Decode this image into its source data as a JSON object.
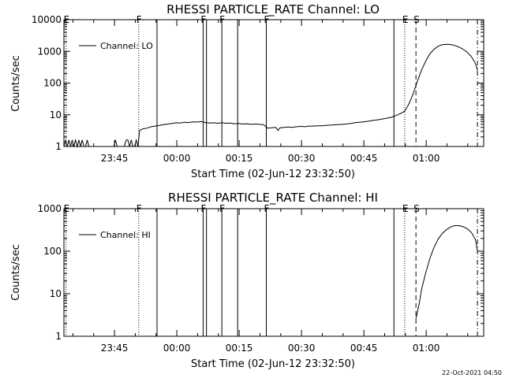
{
  "footer": {
    "timestamp": "22-Oct-2021 04:50"
  },
  "chart_data": [
    {
      "type": "line",
      "title": "RHESSI PARTICLE_RATE Channel: LO",
      "xlabel": "Start Time (02-Jun-12 23:32:50)",
      "ylabel": "Counts/sec",
      "xticks": [
        "23:45",
        "00:00",
        "00:15",
        "00:30",
        "00:45",
        "01:00"
      ],
      "x_minutes_range": [
        0,
        101
      ],
      "yscale": "log",
      "ylim": [
        1,
        10000
      ],
      "yticks": [
        "1",
        "10",
        "100",
        "1000",
        "10000"
      ],
      "legend": {
        "label": "Channel: LO",
        "placement": "top-left"
      },
      "markers": [
        {
          "label": "E",
          "minute": 0.5,
          "style": "dotted"
        },
        {
          "label": "F",
          "minute": 18.0,
          "style": "dotted"
        },
        {
          "label": "",
          "minute": 22.4,
          "style": "solid"
        },
        {
          "label": "F",
          "minute": 33.5,
          "style": "solid"
        },
        {
          "label": "",
          "minute": 34.3,
          "style": "solid"
        },
        {
          "label": "F",
          "minute": 38.0,
          "style": "solid"
        },
        {
          "label": "",
          "minute": 41.8,
          "style": "solid"
        },
        {
          "label": "F",
          "minute": 48.7,
          "style": "solid"
        },
        {
          "label": "",
          "minute": 79.4,
          "style": "solid"
        },
        {
          "label": "E",
          "minute": 82.0,
          "style": "dotted"
        },
        {
          "label": "S",
          "minute": 84.7,
          "style": "dashed"
        },
        {
          "label": "",
          "minute": 99.5,
          "style": "dashdot"
        }
      ],
      "series": [
        {
          "name": "Channel: LO",
          "points": [
            [
              0,
              1
            ],
            [
              0.4,
              1.6
            ],
            [
              0.8,
              1
            ],
            [
              1.2,
              1.6
            ],
            [
              1.6,
              1
            ],
            [
              2,
              1.6
            ],
            [
              2.4,
              1
            ],
            [
              2.8,
              1.6
            ],
            [
              3.2,
              1
            ],
            [
              3.6,
              1.6
            ],
            [
              4,
              1
            ],
            [
              4.4,
              1.6
            ],
            [
              4.8,
              1
            ],
            [
              5.2,
              1
            ],
            [
              5.6,
              1.6
            ],
            [
              6,
              1
            ],
            [
              6.5,
              1
            ],
            [
              7,
              1
            ],
            [
              8,
              1
            ],
            [
              9,
              1
            ],
            [
              10,
              1
            ],
            [
              11,
              1
            ],
            [
              12,
              1
            ],
            [
              12.4,
              1.6
            ],
            [
              12.8,
              1
            ],
            [
              13.5,
              1
            ],
            [
              14.5,
              1
            ],
            [
              15,
              1.6
            ],
            [
              15.4,
              1.6
            ],
            [
              15.8,
              1
            ],
            [
              16.2,
              1.6
            ],
            [
              16.6,
              1
            ],
            [
              17,
              1
            ],
            [
              17.4,
              1.6
            ],
            [
              17.8,
              1
            ],
            [
              18.2,
              3.2
            ],
            [
              19,
              3.6
            ],
            [
              20,
              3.8
            ],
            [
              21,
              4.2
            ],
            [
              22,
              4.4
            ],
            [
              23,
              4.6
            ],
            [
              24,
              4.9
            ],
            [
              25,
              5.1
            ],
            [
              26,
              5.3
            ],
            [
              27,
              5.6
            ],
            [
              28,
              5.5
            ],
            [
              29,
              5.8
            ],
            [
              30,
              5.7
            ],
            [
              31,
              6.0
            ],
            [
              32,
              5.9
            ],
            [
              33,
              6.1
            ],
            [
              34,
              5.7
            ],
            [
              35,
              5.5
            ],
            [
              36,
              5.6
            ],
            [
              37,
              5.4
            ],
            [
              38,
              5.6
            ],
            [
              39,
              5.4
            ],
            [
              40,
              5.5
            ],
            [
              41,
              5.2
            ],
            [
              42,
              5.3
            ],
            [
              43,
              5.1
            ],
            [
              44,
              5.2
            ],
            [
              45,
              5.0
            ],
            [
              46,
              5.1
            ],
            [
              47,
              5.0
            ],
            [
              48,
              4.9
            ],
            [
              49,
              3.8
            ],
            [
              50,
              3.9
            ],
            [
              51,
              4.0
            ],
            [
              51.5,
              3.2
            ],
            [
              52,
              3.9
            ],
            [
              53,
              4.0
            ],
            [
              54,
              4.1
            ],
            [
              55,
              4.0
            ],
            [
              56,
              4.2
            ],
            [
              57,
              4.3
            ],
            [
              58,
              4.2
            ],
            [
              59,
              4.4
            ],
            [
              60,
              4.4
            ],
            [
              61,
              4.5
            ],
            [
              62,
              4.5
            ],
            [
              63,
              4.6
            ],
            [
              64,
              4.7
            ],
            [
              65,
              4.8
            ],
            [
              66,
              4.9
            ],
            [
              67,
              5.0
            ],
            [
              68,
              5.1
            ],
            [
              69,
              5.3
            ],
            [
              70,
              5.6
            ],
            [
              71,
              5.8
            ],
            [
              72,
              6.0
            ],
            [
              73,
              6.2
            ],
            [
              74,
              6.5
            ],
            [
              75,
              6.8
            ],
            [
              76,
              7.1
            ],
            [
              77,
              7.5
            ],
            [
              78,
              8.0
            ],
            [
              79,
              8.5
            ],
            [
              80,
              9.5
            ],
            [
              81,
              11
            ],
            [
              82,
              13
            ],
            [
              83,
              22
            ],
            [
              84,
              45
            ],
            [
              85,
              110
            ],
            [
              86,
              250
            ],
            [
              87,
              480
            ],
            [
              88,
              820
            ],
            [
              89,
              1150
            ],
            [
              90,
              1450
            ],
            [
              91,
              1620
            ],
            [
              92,
              1680
            ],
            [
              93,
              1650
            ],
            [
              94,
              1540
            ],
            [
              95,
              1380
            ],
            [
              96,
              1180
            ],
            [
              97,
              950
            ],
            [
              98,
              700
            ],
            [
              99,
              420
            ],
            [
              99.5,
              250
            ]
          ]
        }
      ]
    },
    {
      "type": "line",
      "title": "RHESSI PARTICLE_RATE Channel: HI",
      "xlabel": "Start Time (02-Jun-12 23:32:50)",
      "ylabel": "Counts/sec",
      "xticks": [
        "23:45",
        "00:00",
        "00:15",
        "00:30",
        "00:45",
        "01:00"
      ],
      "x_minutes_range": [
        0,
        101
      ],
      "yscale": "log",
      "ylim": [
        1,
        1000
      ],
      "yticks": [
        "1",
        "10",
        "100",
        "1000"
      ],
      "legend": {
        "label": "Channel: HI",
        "placement": "top-left"
      },
      "markers": [
        {
          "label": "E",
          "minute": 0.5,
          "style": "dotted"
        },
        {
          "label": "F",
          "minute": 18.0,
          "style": "dotted"
        },
        {
          "label": "",
          "minute": 22.4,
          "style": "solid"
        },
        {
          "label": "F",
          "minute": 33.5,
          "style": "solid"
        },
        {
          "label": "",
          "minute": 34.3,
          "style": "solid"
        },
        {
          "label": "F",
          "minute": 38.0,
          "style": "solid"
        },
        {
          "label": "",
          "minute": 41.8,
          "style": "solid"
        },
        {
          "label": "F",
          "minute": 48.7,
          "style": "solid"
        },
        {
          "label": "",
          "minute": 79.4,
          "style": "solid"
        },
        {
          "label": "E",
          "minute": 82.0,
          "style": "dotted"
        },
        {
          "label": "S",
          "minute": 84.7,
          "style": "dashed"
        },
        {
          "label": "",
          "minute": 99.5,
          "style": "dashdot"
        }
      ],
      "series": [
        {
          "name": "Channel: HI",
          "points": [
            [
              84.7,
              2.6
            ],
            [
              85.5,
              6
            ],
            [
              86,
              12
            ],
            [
              87,
              30
            ],
            [
              88,
              65
            ],
            [
              89,
              120
            ],
            [
              90,
              190
            ],
            [
              91,
              260
            ],
            [
              92,
              320
            ],
            [
              93,
              370
            ],
            [
              94,
              400
            ],
            [
              95,
              400
            ],
            [
              96,
              380
            ],
            [
              97,
              340
            ],
            [
              98,
              280
            ],
            [
              99,
              190
            ],
            [
              99.5,
              100
            ]
          ]
        }
      ]
    }
  ]
}
